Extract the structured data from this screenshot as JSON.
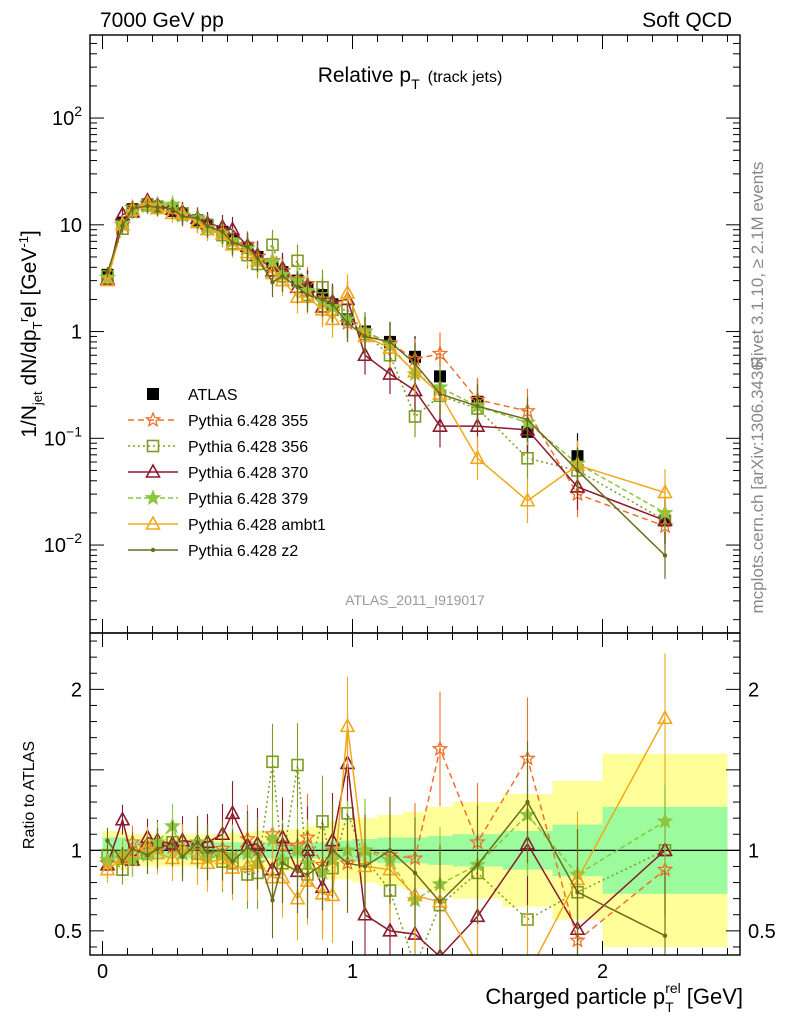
{
  "header": {
    "left": "7000 GeV pp",
    "right": "Soft QCD"
  },
  "side": {
    "rivet": "Rivet 3.1.10, ≥ 2.1M events",
    "mcplots": "mcplots.cern.ch [arXiv:1306.3436]"
  },
  "chart_data": [
    {
      "type": "line",
      "panel": "main",
      "title": "Relative p_T (track jets)",
      "title_parts": {
        "main": "Relative p",
        "sub": "T",
        "suffix": "(track jets)"
      },
      "ylabel": "1/N_jet dN/dp_T^rel [GeV^-1]",
      "xlabel": "",
      "watermark": "ATLAS_2011_I919017",
      "xlim": [
        -0.05,
        2.55
      ],
      "ylim": [
        0.0015,
        600
      ],
      "yscale": "log",
      "ytick_labels": [
        "10^-2",
        "10^-1",
        "1",
        "10",
        "10^2"
      ],
      "legend_position": "left-center",
      "x": [
        0.02,
        0.08,
        0.12,
        0.18,
        0.22,
        0.28,
        0.32,
        0.38,
        0.42,
        0.48,
        0.52,
        0.58,
        0.62,
        0.68,
        0.72,
        0.78,
        0.82,
        0.88,
        0.92,
        0.98,
        1.05,
        1.15,
        1.25,
        1.35,
        1.5,
        1.7,
        1.9,
        2.25
      ],
      "series": [
        {
          "name": "ATLAS",
          "marker": "square-filled",
          "color": "#000000",
          "values": [
            3.4,
            10.5,
            14.0,
            15.5,
            14.5,
            13.5,
            12.5,
            11.0,
            9.8,
            8.6,
            7.3,
            6.1,
            5.0,
            4.2,
            3.6,
            3.0,
            2.6,
            2.2,
            1.8,
            1.3,
            1.0,
            0.8,
            0.58,
            0.38,
            0.22,
            0.115,
            0.068,
            0.017
          ]
        },
        {
          "name": "Pythia 6.428 355",
          "marker": "star-open",
          "color": "#f0702a",
          "dash": "6,4",
          "values": [
            3.2,
            10.0,
            14.5,
            15.8,
            15.0,
            13.8,
            12.2,
            11.3,
            9.5,
            8.7,
            7.0,
            6.5,
            5.0,
            4.6,
            3.7,
            3.1,
            2.8,
            2.0,
            1.8,
            1.2,
            1.0,
            0.78,
            0.55,
            0.62,
            0.23,
            0.18,
            0.03,
            0.015
          ]
        },
        {
          "name": "Pythia 6.428 356",
          "marker": "square-open",
          "color": "#7e9c22",
          "dash": "2,3",
          "values": [
            3.3,
            9.2,
            13.5,
            15.2,
            14.8,
            14.2,
            12.8,
            10.8,
            10.0,
            8.0,
            6.7,
            5.2,
            4.3,
            6.5,
            3.3,
            4.6,
            2.2,
            2.6,
            1.6,
            1.6,
            0.95,
            0.6,
            0.16,
            0.25,
            0.19,
            0.065,
            0.05,
            0.017
          ]
        },
        {
          "name": "Pythia 6.428 370",
          "marker": "triangle-open",
          "color": "#8b1a2e",
          "dash": "",
          "values": [
            3.1,
            12.5,
            13.2,
            16.8,
            15.3,
            14.0,
            13.2,
            11.5,
            10.3,
            9.5,
            9.0,
            6.3,
            5.2,
            3.7,
            3.9,
            2.6,
            2.6,
            1.7,
            1.9,
            2.0,
            0.6,
            0.4,
            0.28,
            0.13,
            0.13,
            0.12,
            0.035,
            0.017
          ]
        },
        {
          "name": "Pythia 6.428 379",
          "marker": "star-filled",
          "color": "#8cc63f",
          "dash": "5,3",
          "values": [
            3.2,
            10.3,
            13.2,
            15.0,
            15.2,
            15.5,
            12.2,
            11.5,
            9.3,
            8.3,
            7.0,
            6.0,
            4.6,
            4.5,
            3.4,
            3.0,
            2.4,
            1.9,
            1.7,
            1.3,
            1.0,
            0.75,
            0.4,
            0.3,
            0.2,
            0.14,
            0.058,
            0.02
          ]
        },
        {
          "name": "Pythia 6.428 ambt1",
          "marker": "triangle-open",
          "color": "#f2a71a",
          "dash": "",
          "values": [
            3.0,
            10.0,
            13.8,
            16.0,
            14.2,
            12.8,
            12.6,
            10.5,
            9.0,
            8.2,
            6.5,
            5.5,
            4.6,
            3.5,
            3.0,
            2.1,
            2.1,
            1.6,
            1.3,
            2.3,
            0.9,
            0.7,
            0.42,
            0.26,
            0.065,
            0.026,
            0.056,
            0.031
          ]
        },
        {
          "name": "Pythia 6.428 z2",
          "marker": "dot",
          "color": "#6b6b1a",
          "dash": "",
          "values": [
            3.6,
            9.8,
            14.2,
            15.0,
            14.6,
            14.0,
            12.0,
            11.6,
            9.7,
            8.6,
            6.8,
            6.2,
            4.9,
            2.9,
            3.3,
            2.6,
            2.2,
            2.0,
            1.8,
            1.2,
            0.9,
            0.8,
            0.5,
            0.26,
            0.2,
            0.15,
            0.05,
            0.008
          ]
        }
      ]
    },
    {
      "type": "line",
      "panel": "ratio",
      "ylabel": "Ratio to ATLAS",
      "xlabel": "Charged particle p_T^rel [GeV]",
      "xlabel_parts": {
        "pre": "Charged particle p",
        "sub": "T",
        "sup": "rel",
        "post": "[GeV]"
      },
      "xlim": [
        -0.05,
        2.55
      ],
      "ylim": [
        0.35,
        2.35
      ],
      "x_tick_labels": [
        "0",
        "1",
        "2"
      ],
      "y_tick_labels": [
        "0.5",
        "1",
        "2"
      ],
      "reference": 1,
      "bands": {
        "x_edges": [
          0.0,
          0.1,
          0.2,
          0.3,
          0.4,
          0.5,
          0.6,
          0.7,
          0.8,
          0.9,
          1.0,
          1.1,
          1.2,
          1.3,
          1.4,
          1.6,
          1.8,
          2.0,
          2.5
        ],
        "inner": [
          0.08,
          0.06,
          0.05,
          0.05,
          0.05,
          0.05,
          0.05,
          0.05,
          0.05,
          0.06,
          0.07,
          0.08,
          0.08,
          0.09,
          0.1,
          0.12,
          0.16,
          0.27
        ],
        "outer": [
          0.12,
          0.1,
          0.1,
          0.1,
          0.1,
          0.11,
          0.12,
          0.13,
          0.15,
          0.18,
          0.2,
          0.22,
          0.24,
          0.27,
          0.3,
          0.35,
          0.43,
          0.6
        ],
        "inner_color": "#9cfb9c",
        "outer_color": "#ffff99"
      },
      "series": [
        {
          "name": "Pythia 6.428 355",
          "values": [
            0.92,
            0.95,
            1.05,
            1.02,
            1.03,
            1.02,
            0.98,
            1.03,
            0.97,
            1.01,
            0.96,
            1.07,
            1.0,
            1.1,
            1.03,
            1.03,
            1.08,
            0.91,
            1.0,
            0.92,
            1.0,
            0.97,
            0.95,
            1.63,
            1.05,
            1.57,
            0.44,
            0.88
          ]
        },
        {
          "name": "Pythia 6.428 356",
          "values": [
            0.97,
            0.88,
            0.96,
            0.98,
            1.02,
            1.05,
            1.02,
            0.98,
            1.02,
            0.93,
            0.92,
            0.85,
            0.86,
            1.55,
            0.92,
            1.53,
            0.85,
            1.18,
            0.89,
            1.23,
            0.95,
            0.75,
            0.28,
            0.66,
            0.86,
            0.57,
            0.74,
            1.0
          ]
        },
        {
          "name": "Pythia 6.428 370",
          "values": [
            0.91,
            1.19,
            0.94,
            1.08,
            1.06,
            1.04,
            1.06,
            1.05,
            1.05,
            1.1,
            1.23,
            1.03,
            1.04,
            0.88,
            1.08,
            0.87,
            1.0,
            0.77,
            1.06,
            1.54,
            0.6,
            0.5,
            0.48,
            0.34,
            0.59,
            1.04,
            0.51,
            1.0
          ]
        },
        {
          "name": "Pythia 6.428 379",
          "values": [
            0.94,
            0.98,
            0.94,
            0.97,
            1.05,
            1.15,
            0.98,
            1.05,
            0.95,
            0.97,
            0.96,
            0.98,
            0.92,
            1.07,
            0.94,
            1.0,
            0.92,
            0.86,
            0.94,
            1.0,
            1.0,
            0.94,
            0.69,
            0.79,
            0.91,
            1.22,
            0.85,
            1.18
          ]
        },
        {
          "name": "Pythia 6.428 ambt1",
          "values": [
            0.88,
            0.95,
            0.99,
            1.03,
            0.98,
            0.95,
            1.01,
            0.95,
            0.92,
            0.95,
            0.89,
            0.9,
            0.92,
            0.83,
            0.83,
            0.7,
            0.81,
            0.73,
            0.72,
            1.77,
            0.9,
            0.88,
            0.72,
            0.68,
            0.3,
            0.23,
            0.82,
            1.82
          ]
        },
        {
          "name": "Pythia 6.428 z2",
          "values": [
            1.06,
            0.93,
            1.01,
            0.97,
            1.01,
            1.04,
            0.96,
            1.05,
            0.99,
            1.0,
            0.93,
            1.02,
            0.98,
            0.69,
            0.92,
            0.87,
            0.85,
            0.91,
            1.0,
            0.92,
            0.9,
            1.0,
            0.86,
            0.68,
            0.91,
            1.3,
            0.74,
            0.47
          ]
        }
      ]
    }
  ]
}
